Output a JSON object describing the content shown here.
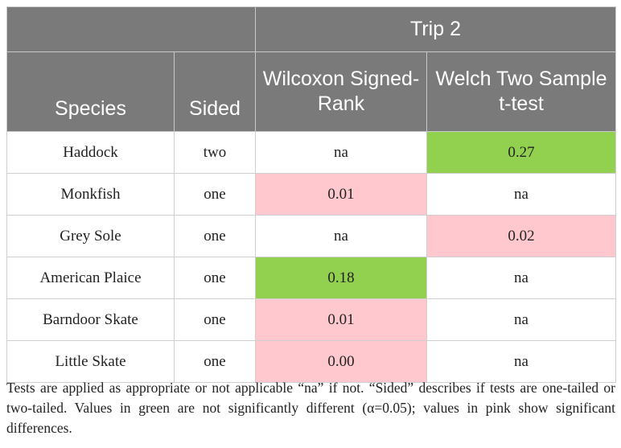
{
  "table": {
    "group_header": "Trip 2",
    "columns": {
      "species": "Species",
      "sided": "Sided",
      "wilcoxon": "Wilcoxon Signed-Rank",
      "welch": "Welch Two Sample t-test"
    },
    "rows": [
      {
        "species": "Haddock",
        "sided": "two",
        "wilcoxon": "na",
        "welch": "0.27"
      },
      {
        "species": "Monkfish",
        "sided": "one",
        "wilcoxon": "0.01",
        "welch": "na"
      },
      {
        "species": "Grey Sole",
        "sided": "one",
        "wilcoxon": "na",
        "welch": "0.02"
      },
      {
        "species": "American Plaice",
        "sided": "one",
        "wilcoxon": "0.18",
        "welch": "na"
      },
      {
        "species": "Barndoor Skate",
        "sided": "one",
        "wilcoxon": "0.01",
        "welch": "na"
      },
      {
        "species": "Little Skate",
        "sided": "one",
        "wilcoxon": "0.00",
        "welch": "na"
      }
    ]
  },
  "colors": {
    "header_bg": "#7a7a7a",
    "not_significant": "#92d050",
    "significant": "#ffc8ce"
  },
  "footnote": "Tests are applied as appropriate or not applicable “na” if not. “Sided” describes if tests are one-tailed or two-tailed. Values in green are not significantly different (α=0.05); values in pink show significant differences."
}
